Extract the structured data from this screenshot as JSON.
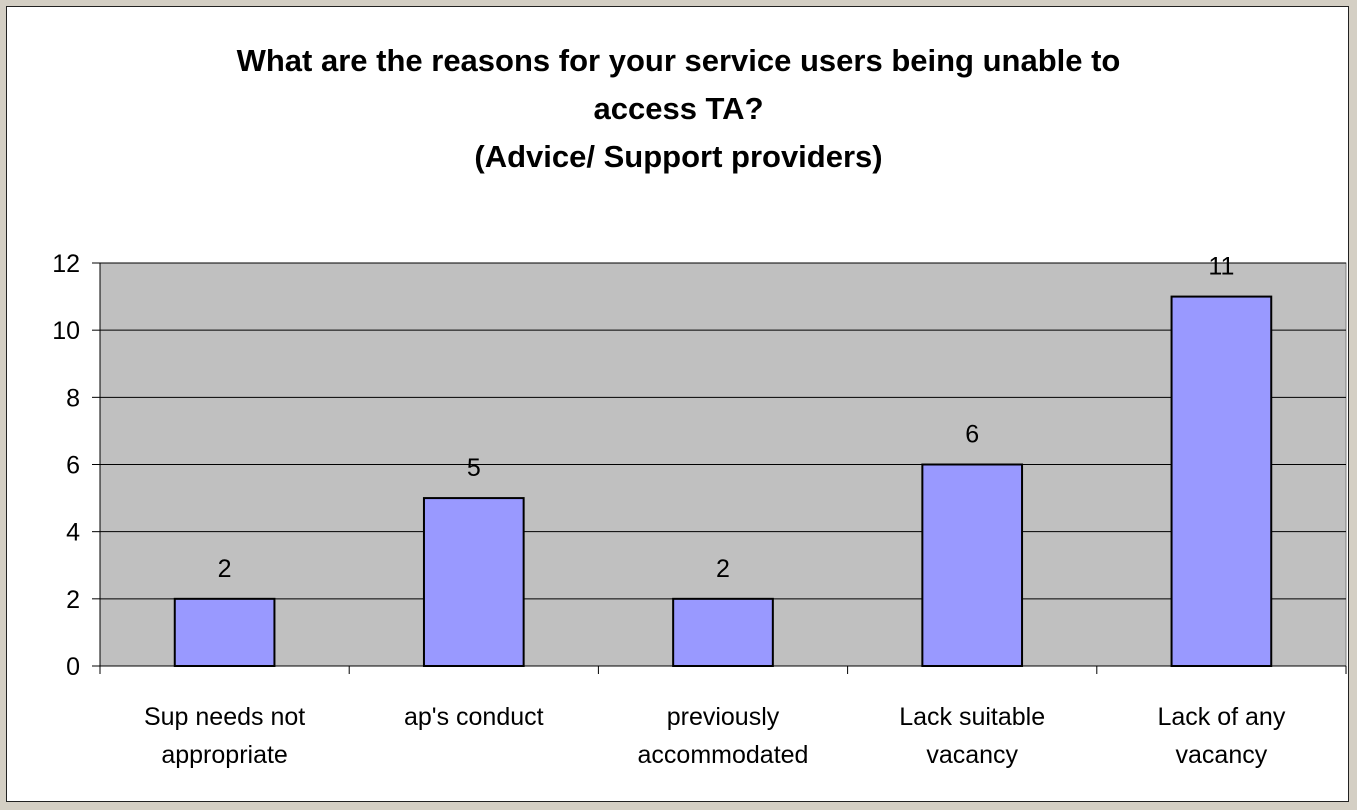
{
  "chart_data": {
    "type": "bar",
    "title_lines": [
      "What are the reasons for your service users being unable to",
      "access TA?",
      "(Advice/ Support providers)"
    ],
    "categories": [
      [
        "Sup needs not",
        "appropriate"
      ],
      [
        "ap's conduct"
      ],
      [
        "previously",
        "accommodated"
      ],
      [
        "Lack suitable",
        "vacancy"
      ],
      [
        "Lack of any",
        "vacancy"
      ]
    ],
    "values": [
      2,
      5,
      2,
      6,
      11
    ],
    "data_labels": [
      "2",
      "5",
      "2",
      "6",
      "11"
    ],
    "ylim": [
      0,
      12
    ],
    "yticks": [
      0,
      2,
      4,
      6,
      8,
      10,
      12
    ],
    "grid": true,
    "legend": "none",
    "colors": {
      "bar_fill": "#9999ff",
      "bar_stroke": "#000000",
      "plot_bg": "#c0c0c0",
      "frame_bg": "#d4cfc4"
    }
  }
}
